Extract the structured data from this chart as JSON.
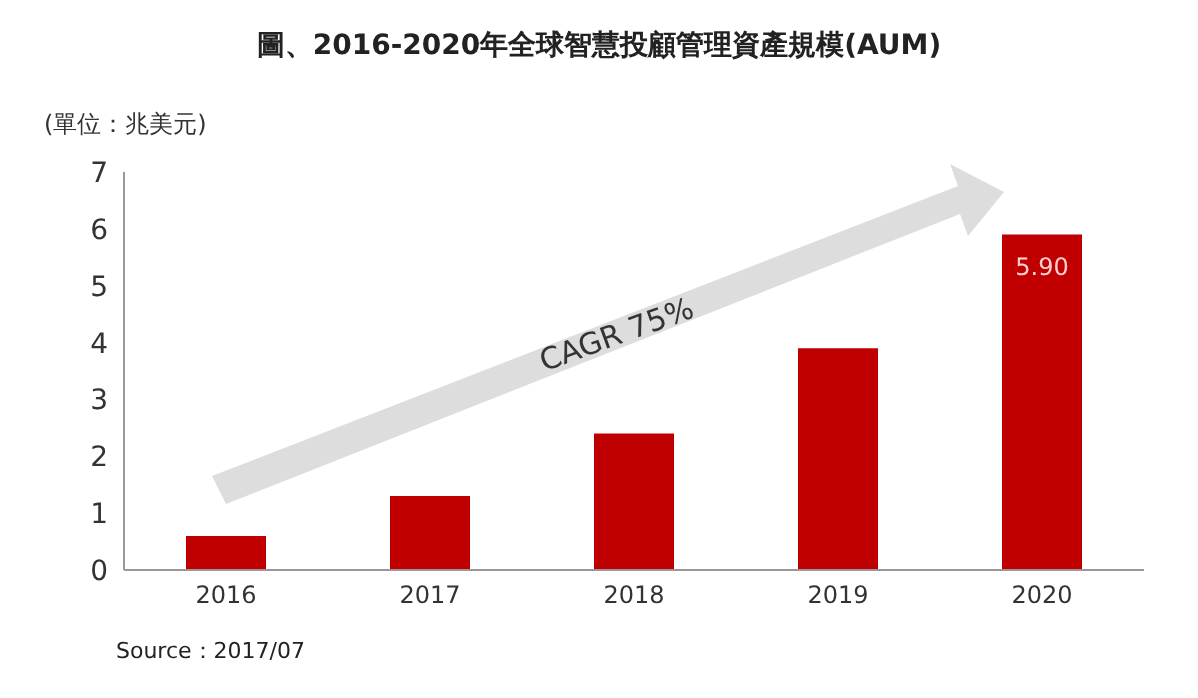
{
  "chart_data": {
    "type": "bar",
    "title": "圖、2016-2020年全球智慧投顧管理資產規模(AUM)",
    "ylabel": "(單位：兆美元)",
    "categories": [
      "2016",
      "2017",
      "2018",
      "2019",
      "2020"
    ],
    "series": [
      {
        "color": "#c00000",
        "values": [
          0.6,
          1.3,
          2.4,
          3.9,
          5.9
        ],
        "value_labels": [
          null,
          null,
          null,
          null,
          "5.90"
        ]
      }
    ],
    "ylim": [
      0,
      7
    ],
    "yticks": [
      0,
      1,
      2,
      3,
      4,
      5,
      6,
      7
    ],
    "annotations": [
      "CAGR 75%",
      "Source：2017/07"
    ]
  }
}
